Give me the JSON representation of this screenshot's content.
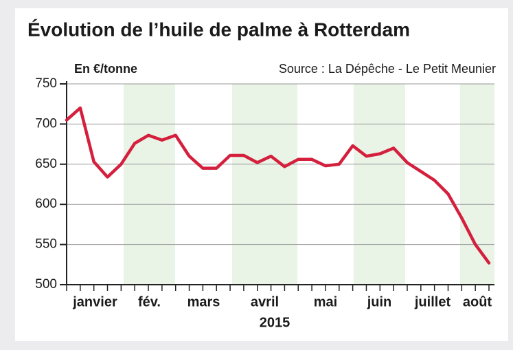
{
  "chart_data": {
    "type": "line",
    "title": "Évolution de l’huile de palme à Rotterdam",
    "y_unit_label": "En €/tonne",
    "source": "Source : La Dépêche - Le Petit Meunier",
    "x_label": "2015",
    "months": [
      "janvier",
      "fév.",
      "mars",
      "avril",
      "mai",
      "juin",
      "juillet",
      "août"
    ],
    "series": [
      {
        "name": "Huile de palme",
        "color": "#d41f3d",
        "values": [
          705,
          720,
          653,
          634,
          650,
          676,
          686,
          680,
          686,
          660,
          645,
          645,
          661,
          661,
          652,
          660,
          647,
          656,
          656,
          648,
          650,
          673,
          660,
          663,
          670,
          652,
          641,
          630,
          613,
          583,
          550,
          527
        ]
      }
    ],
    "ylim": [
      500,
      750
    ],
    "yticks": [
      500,
      550,
      600,
      650,
      700,
      750
    ],
    "grid": true
  }
}
